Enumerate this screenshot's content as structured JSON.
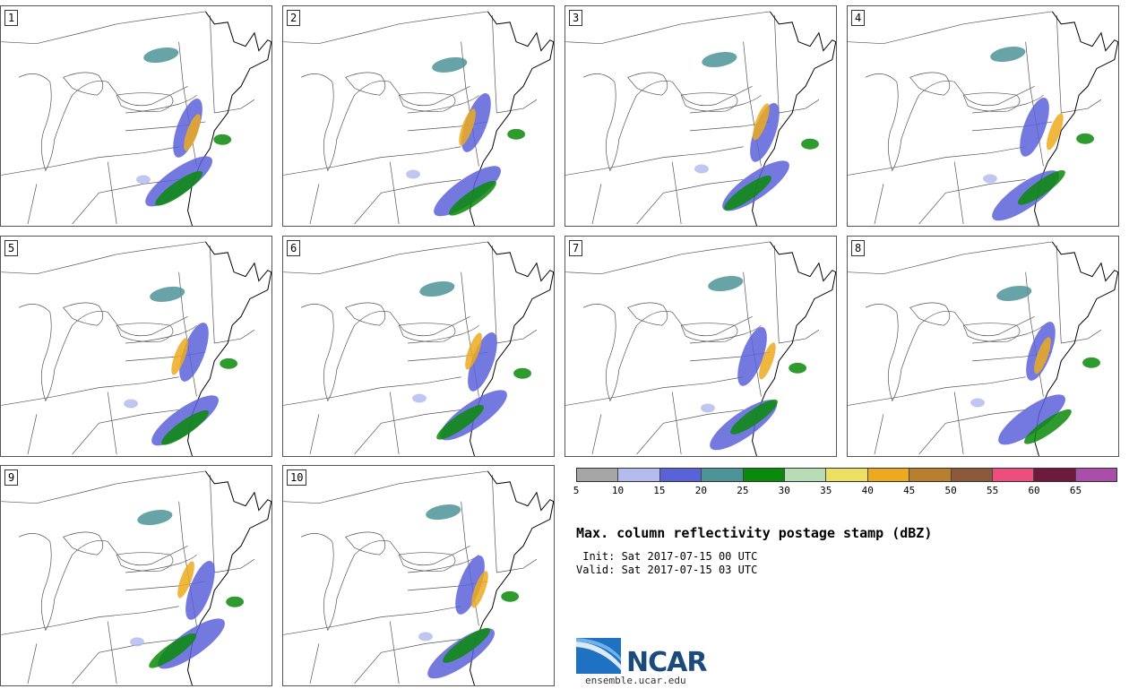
{
  "panels": [
    {
      "label": "1"
    },
    {
      "label": "2"
    },
    {
      "label": "3"
    },
    {
      "label": "4"
    },
    {
      "label": "5"
    },
    {
      "label": "6"
    },
    {
      "label": "7"
    },
    {
      "label": "8"
    },
    {
      "label": "9"
    },
    {
      "label": "10"
    }
  ],
  "legend": {
    "colors": [
      "#a6a6a6",
      "#b4bcee",
      "#5a62d8",
      "#4d9498",
      "#0a8a0a",
      "#b8dcb6",
      "#ece064",
      "#ecaa1e",
      "#b8802e",
      "#8c5a3a",
      "#ee4e7e",
      "#6e1a3c",
      "#aa4eaa"
    ],
    "ticks": [
      "5",
      "10",
      "15",
      "20",
      "25",
      "30",
      "35",
      "40",
      "45",
      "50",
      "55",
      "60",
      "65"
    ]
  },
  "title": "Max. column reflectivity postage stamp (dBZ)",
  "init": " Init: Sat 2017-07-15 00 UTC",
  "valid": "Valid: Sat 2017-07-15 03 UTC",
  "logo": {
    "text": "NCAR",
    "url_text": "ensemble.ucar.edu"
  }
}
